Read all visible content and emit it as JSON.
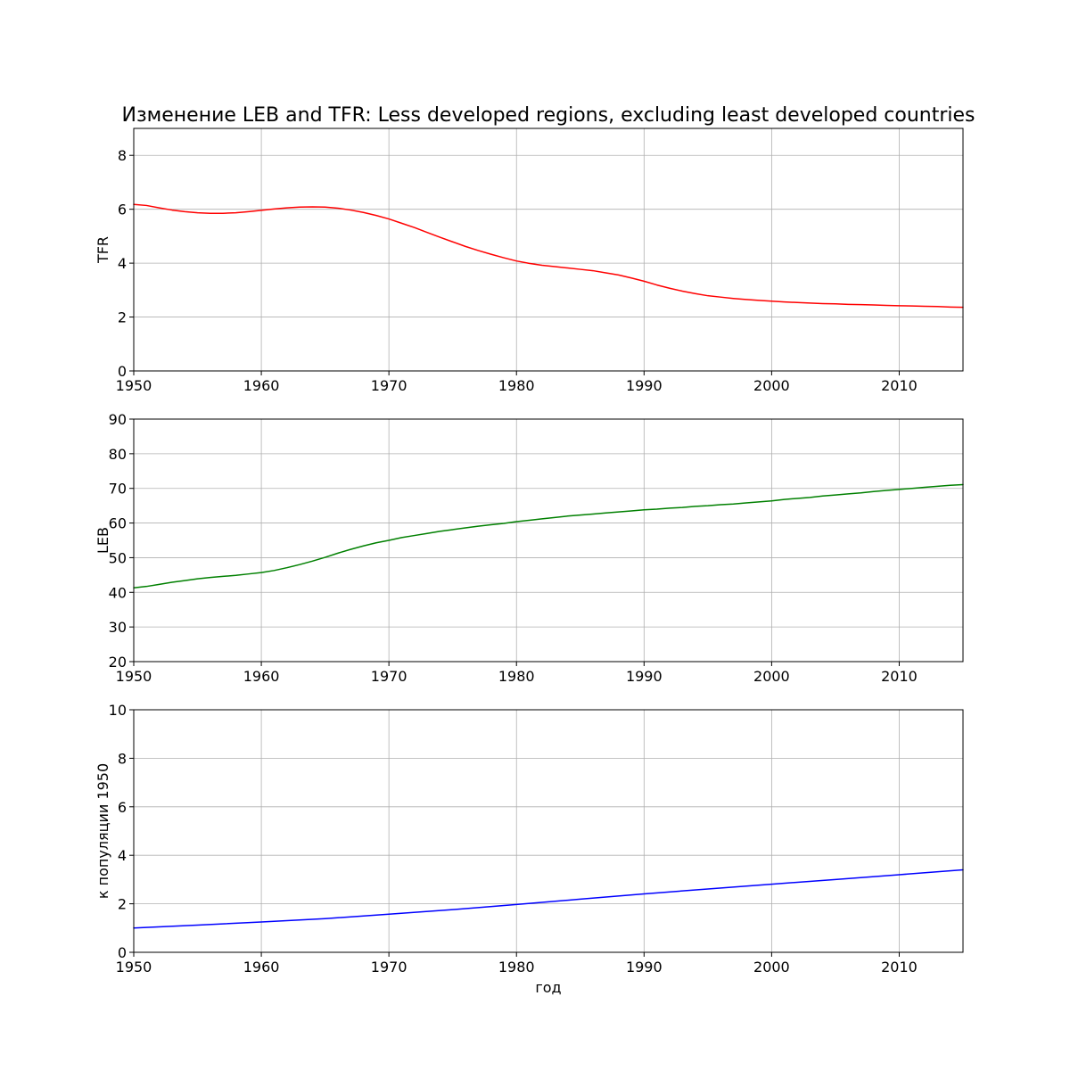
{
  "figure": {
    "title": "Изменение LEB and TFR: Less developed regions, excluding least developed countries"
  },
  "chart_data": [
    {
      "type": "line",
      "title": "Изменение LEB and TFR: Less developed regions, excluding least developed countries",
      "xlabel": "",
      "ylabel": "TFR",
      "xlim": [
        1950,
        2015
      ],
      "ylim": [
        0,
        9
      ],
      "xticks": [
        "1950",
        "1960",
        "1970",
        "1980",
        "1990",
        "2000",
        "2010"
      ],
      "yticks": [
        "0",
        "2",
        "4",
        "6",
        "8"
      ],
      "grid": true,
      "series": [
        {
          "color": "#ff0000",
          "x": [
            1950,
            1951,
            1952,
            1953,
            1954,
            1955,
            1956,
            1957,
            1958,
            1959,
            1960,
            1961,
            1962,
            1963,
            1964,
            1965,
            1966,
            1967,
            1968,
            1969,
            1970,
            1971,
            1972,
            1973,
            1974,
            1975,
            1976,
            1977,
            1978,
            1979,
            1980,
            1981,
            1982,
            1983,
            1984,
            1985,
            1986,
            1987,
            1988,
            1989,
            1990,
            1991,
            1992,
            1993,
            1994,
            1995,
            1996,
            1997,
            1998,
            1999,
            2000,
            2001,
            2002,
            2003,
            2004,
            2005,
            2006,
            2007,
            2008,
            2009,
            2010,
            2011,
            2012,
            2013,
            2014,
            2015
          ],
          "y": [
            6.18,
            6.14,
            6.05,
            5.97,
            5.91,
            5.87,
            5.85,
            5.85,
            5.87,
            5.91,
            5.96,
            6.01,
            6.05,
            6.08,
            6.09,
            6.08,
            6.04,
            5.97,
            5.88,
            5.77,
            5.64,
            5.48,
            5.32,
            5.14,
            4.96,
            4.79,
            4.62,
            4.47,
            4.33,
            4.2,
            4.08,
            3.99,
            3.92,
            3.87,
            3.82,
            3.77,
            3.72,
            3.64,
            3.56,
            3.45,
            3.33,
            3.19,
            3.07,
            2.96,
            2.87,
            2.79,
            2.74,
            2.69,
            2.65,
            2.62,
            2.59,
            2.56,
            2.54,
            2.52,
            2.5,
            2.49,
            2.47,
            2.46,
            2.45,
            2.43,
            2.42,
            2.41,
            2.4,
            2.39,
            2.37,
            2.36
          ]
        }
      ]
    },
    {
      "type": "line",
      "title": "",
      "xlabel": "",
      "ylabel": "LEB",
      "xlim": [
        1950,
        2015
      ],
      "ylim": [
        20,
        90
      ],
      "xticks": [
        "1950",
        "1960",
        "1970",
        "1980",
        "1990",
        "2000",
        "2010"
      ],
      "yticks": [
        "20",
        "30",
        "40",
        "50",
        "60",
        "70",
        "80",
        "90"
      ],
      "grid": true,
      "series": [
        {
          "color": "#008000",
          "x": [
            1950,
            1951,
            1952,
            1953,
            1954,
            1955,
            1956,
            1957,
            1958,
            1959,
            1960,
            1961,
            1962,
            1963,
            1964,
            1965,
            1966,
            1967,
            1968,
            1969,
            1970,
            1971,
            1972,
            1973,
            1974,
            1975,
            1976,
            1977,
            1978,
            1979,
            1980,
            1981,
            1982,
            1983,
            1984,
            1985,
            1986,
            1987,
            1988,
            1989,
            1990,
            1991,
            1992,
            1993,
            1994,
            1995,
            1996,
            1997,
            1998,
            1999,
            2000,
            2001,
            2002,
            2003,
            2004,
            2005,
            2006,
            2007,
            2008,
            2009,
            2010,
            2011,
            2012,
            2013,
            2014,
            2015
          ],
          "y": [
            41.3,
            41.7,
            42.3,
            42.9,
            43.4,
            43.9,
            44.3,
            44.6,
            44.9,
            45.3,
            45.7,
            46.3,
            47.1,
            48.0,
            49.0,
            50.1,
            51.3,
            52.4,
            53.4,
            54.3,
            55.0,
            55.8,
            56.4,
            57.0,
            57.6,
            58.1,
            58.6,
            59.1,
            59.5,
            59.9,
            60.4,
            60.8,
            61.2,
            61.6,
            62.0,
            62.3,
            62.6,
            62.9,
            63.2,
            63.5,
            63.8,
            64.0,
            64.3,
            64.5,
            64.8,
            65.0,
            65.3,
            65.5,
            65.8,
            66.1,
            66.4,
            66.8,
            67.1,
            67.4,
            67.8,
            68.1,
            68.4,
            68.7,
            69.1,
            69.4,
            69.7,
            70.0,
            70.3,
            70.6,
            70.9,
            71.1
          ]
        }
      ]
    },
    {
      "type": "line",
      "title": "",
      "xlabel": "год",
      "ylabel": "к популяции 1950",
      "xlim": [
        1950,
        2015
      ],
      "ylim": [
        0,
        10
      ],
      "xticks": [
        "1950",
        "1960",
        "1970",
        "1980",
        "1990",
        "2000",
        "2010"
      ],
      "yticks": [
        "0",
        "2",
        "4",
        "6",
        "8",
        "10"
      ],
      "grid": true,
      "series": [
        {
          "color": "#0000ff",
          "x": [
            1950,
            1955,
            1960,
            1965,
            1970,
            1975,
            1980,
            1985,
            1990,
            1995,
            2000,
            2005,
            2010,
            2015
          ],
          "y": [
            1.0,
            1.12,
            1.25,
            1.39,
            1.57,
            1.76,
            1.97,
            2.19,
            2.41,
            2.61,
            2.81,
            3.0,
            3.2,
            3.4
          ]
        }
      ]
    }
  ]
}
